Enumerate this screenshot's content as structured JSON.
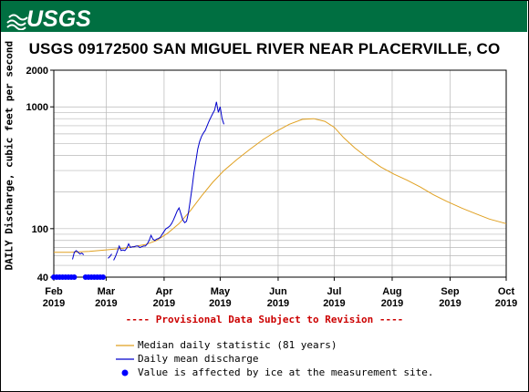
{
  "header": {
    "logo_text": "USGS",
    "brand_color": "#006f41"
  },
  "title": "USGS 09172500 SAN MIGUEL RIVER NEAR PLACERVILLE, CO",
  "provisional_note": "---- Provisional Data Subject to Revision ----",
  "legend": {
    "median_label": "Median daily statistic (81 years)",
    "daily_label": "Daily mean discharge",
    "ice_label": "Value is affected by ice at the measurement site."
  },
  "chart_data": {
    "type": "line",
    "ylabel": "DAILY Discharge, cubic feet per second",
    "y_scale": "log",
    "ylim": [
      40,
      2000
    ],
    "yticks": [
      40,
      100,
      1000,
      2000
    ],
    "xlim": [
      "2019-02-01",
      "2019-10-01"
    ],
    "xticks": [
      {
        "date": "2019-02-01",
        "month": "Feb",
        "year": "2019"
      },
      {
        "date": "2019-03-01",
        "month": "Mar",
        "year": "2019"
      },
      {
        "date": "2019-04-01",
        "month": "Apr",
        "year": "2019"
      },
      {
        "date": "2019-05-01",
        "month": "May",
        "year": "2019"
      },
      {
        "date": "2019-06-01",
        "month": "Jun",
        "year": "2019"
      },
      {
        "date": "2019-07-01",
        "month": "Jul",
        "year": "2019"
      },
      {
        "date": "2019-08-01",
        "month": "Aug",
        "year": "2019"
      },
      {
        "date": "2019-09-01",
        "month": "Sep",
        "year": "2019"
      },
      {
        "date": "2019-10-01",
        "month": "Oct",
        "year": "2019"
      }
    ],
    "grid": true,
    "series": [
      {
        "name": "Median daily statistic (81 years)",
        "color": "#e0a020",
        "points": [
          [
            "2019-02-01",
            64
          ],
          [
            "2019-02-10",
            64
          ],
          [
            "2019-02-20",
            65
          ],
          [
            "2019-03-01",
            67
          ],
          [
            "2019-03-10",
            69
          ],
          [
            "2019-03-15",
            71
          ],
          [
            "2019-03-22",
            74
          ],
          [
            "2019-03-28",
            80
          ],
          [
            "2019-04-03",
            92
          ],
          [
            "2019-04-09",
            110
          ],
          [
            "2019-04-15",
            140
          ],
          [
            "2019-04-21",
            185
          ],
          [
            "2019-04-27",
            240
          ],
          [
            "2019-05-03",
            300
          ],
          [
            "2019-05-10",
            370
          ],
          [
            "2019-05-17",
            450
          ],
          [
            "2019-05-24",
            540
          ],
          [
            "2019-05-31",
            630
          ],
          [
            "2019-06-07",
            720
          ],
          [
            "2019-06-14",
            790
          ],
          [
            "2019-06-20",
            800
          ],
          [
            "2019-06-26",
            760
          ],
          [
            "2019-07-01",
            680
          ],
          [
            "2019-07-06",
            560
          ],
          [
            "2019-07-12",
            460
          ],
          [
            "2019-07-19",
            380
          ],
          [
            "2019-07-26",
            320
          ],
          [
            "2019-08-02",
            280
          ],
          [
            "2019-08-09",
            250
          ],
          [
            "2019-08-16",
            220
          ],
          [
            "2019-08-23",
            190
          ],
          [
            "2019-08-30",
            168
          ],
          [
            "2019-09-07",
            148
          ],
          [
            "2019-09-15",
            132
          ],
          [
            "2019-09-22",
            120
          ],
          [
            "2019-10-01",
            110
          ]
        ]
      },
      {
        "name": "Daily mean discharge",
        "color": "#0000cc",
        "segments": [
          [
            [
              "2019-02-11",
              56
            ],
            [
              "2019-02-12",
              64
            ],
            [
              "2019-02-13",
              66
            ],
            [
              "2019-02-14",
              64
            ],
            [
              "2019-02-15",
              62
            ],
            [
              "2019-02-16",
              63
            ],
            [
              "2019-02-17",
              61
            ]
          ],
          [
            [
              "2019-03-02",
              57
            ],
            [
              "2019-03-03",
              59
            ],
            [
              "2019-03-04",
              62
            ]
          ],
          [
            [
              "2019-03-05",
              55
            ],
            [
              "2019-03-06",
              59
            ],
            [
              "2019-03-07",
              65
            ],
            [
              "2019-03-08",
              72
            ],
            [
              "2019-03-09",
              66
            ],
            [
              "2019-03-10",
              67
            ],
            [
              "2019-03-11",
              66
            ],
            [
              "2019-03-12",
              69
            ],
            [
              "2019-03-13",
              75
            ],
            [
              "2019-03-14",
              70
            ],
            [
              "2019-03-15",
              71
            ],
            [
              "2019-03-16",
              71
            ],
            [
              "2019-03-17",
              72
            ],
            [
              "2019-03-18",
              72
            ],
            [
              "2019-03-19",
              70
            ],
            [
              "2019-03-20",
              71
            ],
            [
              "2019-03-21",
              72
            ],
            [
              "2019-03-22",
              72
            ],
            [
              "2019-03-23",
              75
            ],
            [
              "2019-03-24",
              80
            ],
            [
              "2019-03-25",
              88
            ],
            [
              "2019-03-26",
              82
            ],
            [
              "2019-03-27",
              80
            ],
            [
              "2019-03-28",
              82
            ],
            [
              "2019-03-29",
              83
            ],
            [
              "2019-03-30",
              85
            ],
            [
              "2019-03-31",
              90
            ],
            [
              "2019-04-01",
              95
            ],
            [
              "2019-04-02",
              100
            ],
            [
              "2019-04-03",
              102
            ],
            [
              "2019-04-04",
              105
            ],
            [
              "2019-04-05",
              110
            ],
            [
              "2019-04-06",
              118
            ],
            [
              "2019-04-07",
              128
            ],
            [
              "2019-04-08",
              140
            ],
            [
              "2019-04-09",
              148
            ],
            [
              "2019-04-10",
              132
            ],
            [
              "2019-04-11",
              118
            ],
            [
              "2019-04-12",
              112
            ],
            [
              "2019-04-13",
              115
            ],
            [
              "2019-04-14",
              135
            ],
            [
              "2019-04-15",
              170
            ],
            [
              "2019-04-16",
              220
            ],
            [
              "2019-04-17",
              290
            ],
            [
              "2019-04-18",
              360
            ],
            [
              "2019-04-19",
              450
            ],
            [
              "2019-04-20",
              520
            ],
            [
              "2019-04-21",
              570
            ],
            [
              "2019-04-22",
              610
            ],
            [
              "2019-04-23",
              640
            ],
            [
              "2019-04-24",
              700
            ],
            [
              "2019-04-25",
              760
            ],
            [
              "2019-04-26",
              820
            ],
            [
              "2019-04-27",
              880
            ],
            [
              "2019-04-28",
              940
            ],
            [
              "2019-04-29",
              1100
            ],
            [
              "2019-04-30",
              900
            ],
            [
              "2019-05-01",
              1000
            ],
            [
              "2019-05-02",
              800
            ],
            [
              "2019-05-03",
              720
            ]
          ]
        ]
      }
    ],
    "ice_markers": {
      "color": "#0000ff",
      "value": 40,
      "ranges": [
        [
          "2019-02-01",
          "2019-02-13"
        ],
        [
          "2019-02-18",
          "2019-02-28"
        ]
      ]
    }
  }
}
